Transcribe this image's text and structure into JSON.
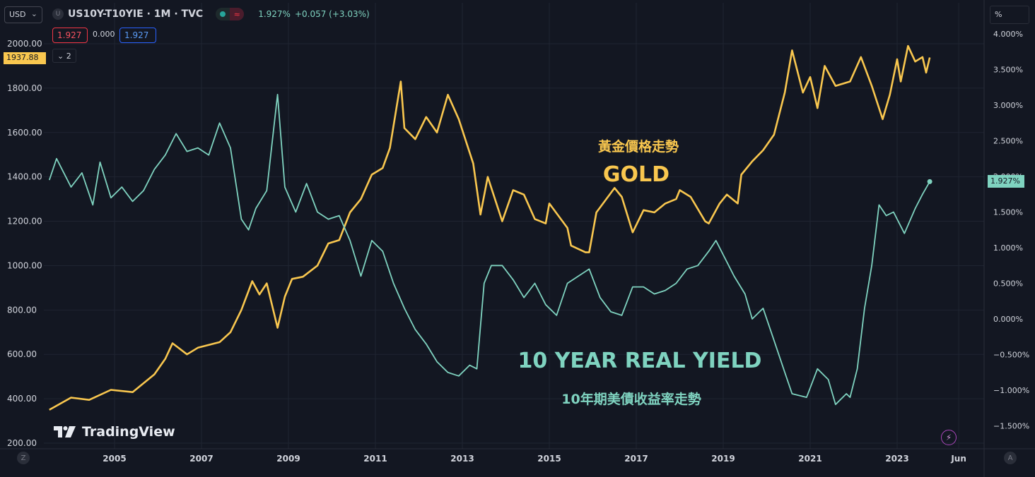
{
  "header": {
    "currency": "USD",
    "symbol_badge": "U",
    "title": "US10Y-T10YIE · 1M · TVC",
    "last_value": "1.927%",
    "change": "+0.057 (+3.03%)",
    "sell_price": "1.927",
    "spread": "0.000",
    "buy_price": "1.927",
    "indicator_count": "2",
    "right_unit": "%"
  },
  "price_tags": {
    "gold_last": "1937.88",
    "yield_last": "1.927%"
  },
  "footer": {
    "logo_text": "TradingView",
    "left_button": "Z",
    "right_button": "A"
  },
  "colors": {
    "background": "#131722",
    "gold": "#f9c74f",
    "real_yield": "#7fd3c0",
    "grid": "#1f2431",
    "axis_text": "#d1d4dc"
  },
  "chart_data": {
    "type": "line",
    "annotations": [
      {
        "text": "黃金價格走勢",
        "series": "gold"
      },
      {
        "text": "GOLD",
        "series": "gold"
      },
      {
        "text": "10 YEAR REAL YIELD",
        "series": "real_yield"
      },
      {
        "text": "10年期美債收益率走勢",
        "series": "real_yield"
      }
    ],
    "x_ticks": [
      "2005",
      "2007",
      "2009",
      "2011",
      "2013",
      "2015",
      "2017",
      "2019",
      "2021",
      "2023",
      "Jun"
    ],
    "x_range": [
      "2003-06",
      "2024-06"
    ],
    "left_axis": {
      "ticks": [
        "200.00",
        "400.00",
        "600.00",
        "800.00",
        "1000.00",
        "1200.00",
        "1400.00",
        "1600.00",
        "1800.00",
        "2000.00"
      ],
      "range": [
        200,
        2000
      ]
    },
    "right_axis": {
      "ticks": [
        "−1.500%",
        "−1.000%",
        "−0.500%",
        "0.000%",
        "0.500%",
        "1.000%",
        "1.500%",
        "2.000%",
        "2.500%",
        "3.000%",
        "3.500%",
        "4.000%"
      ],
      "range": [
        -1.5,
        4.0
      ]
    },
    "grid": true,
    "series": [
      {
        "key": "gold",
        "axis": "left",
        "points": [
          [
            "2003-07",
            350
          ],
          [
            "2004-01",
            405
          ],
          [
            "2004-06",
            395
          ],
          [
            "2004-12",
            440
          ],
          [
            "2005-06",
            430
          ],
          [
            "2005-12",
            510
          ],
          [
            "2006-03",
            580
          ],
          [
            "2006-05",
            650
          ],
          [
            "2006-09",
            600
          ],
          [
            "2006-12",
            630
          ],
          [
            "2007-06",
            655
          ],
          [
            "2007-09",
            700
          ],
          [
            "2007-12",
            800
          ],
          [
            "2008-03",
            930
          ],
          [
            "2008-05",
            870
          ],
          [
            "2008-07",
            920
          ],
          [
            "2008-10",
            720
          ],
          [
            "2008-12",
            860
          ],
          [
            "2009-02",
            940
          ],
          [
            "2009-05",
            950
          ],
          [
            "2009-09",
            1000
          ],
          [
            "2009-12",
            1100
          ],
          [
            "2010-03",
            1115
          ],
          [
            "2010-06",
            1240
          ],
          [
            "2010-09",
            1300
          ],
          [
            "2010-12",
            1410
          ],
          [
            "2011-03",
            1440
          ],
          [
            "2011-05",
            1530
          ],
          [
            "2011-08",
            1830
          ],
          [
            "2011-09",
            1620
          ],
          [
            "2011-12",
            1570
          ],
          [
            "2012-03",
            1670
          ],
          [
            "2012-06",
            1600
          ],
          [
            "2012-09",
            1770
          ],
          [
            "2012-12",
            1660
          ],
          [
            "2013-04",
            1460
          ],
          [
            "2013-06",
            1230
          ],
          [
            "2013-08",
            1400
          ],
          [
            "2013-12",
            1200
          ],
          [
            "2014-03",
            1340
          ],
          [
            "2014-06",
            1320
          ],
          [
            "2014-09",
            1210
          ],
          [
            "2014-12",
            1190
          ],
          [
            "2015-01",
            1280
          ],
          [
            "2015-06",
            1170
          ],
          [
            "2015-07",
            1090
          ],
          [
            "2015-11",
            1060
          ],
          [
            "2015-12",
            1060
          ],
          [
            "2016-02",
            1240
          ],
          [
            "2016-07",
            1350
          ],
          [
            "2016-09",
            1310
          ],
          [
            "2016-12",
            1150
          ],
          [
            "2017-03",
            1250
          ],
          [
            "2017-06",
            1240
          ],
          [
            "2017-09",
            1280
          ],
          [
            "2017-12",
            1300
          ],
          [
            "2018-01",
            1340
          ],
          [
            "2018-04",
            1310
          ],
          [
            "2018-08",
            1200
          ],
          [
            "2018-09",
            1190
          ],
          [
            "2018-12",
            1280
          ],
          [
            "2019-02",
            1320
          ],
          [
            "2019-05",
            1280
          ],
          [
            "2019-06",
            1410
          ],
          [
            "2019-09",
            1470
          ],
          [
            "2019-12",
            1520
          ],
          [
            "2020-03",
            1590
          ],
          [
            "2020-06",
            1780
          ],
          [
            "2020-08",
            1970
          ],
          [
            "2020-11",
            1780
          ],
          [
            "2021-01",
            1850
          ],
          [
            "2021-03",
            1710
          ],
          [
            "2021-05",
            1900
          ],
          [
            "2021-08",
            1810
          ],
          [
            "2021-12",
            1830
          ],
          [
            "2022-03",
            1940
          ],
          [
            "2022-06",
            1810
          ],
          [
            "2022-09",
            1660
          ],
          [
            "2022-11",
            1770
          ],
          [
            "2023-01",
            1930
          ],
          [
            "2023-02",
            1830
          ],
          [
            "2023-04",
            1990
          ],
          [
            "2023-06",
            1920
          ],
          [
            "2023-08",
            1940
          ],
          [
            "2023-09",
            1870
          ],
          [
            "2023-10",
            1937.88
          ]
        ]
      },
      {
        "key": "real_yield",
        "axis": "right",
        "points": [
          [
            "2003-07",
            1.95
          ],
          [
            "2003-09",
            2.25
          ],
          [
            "2004-01",
            1.85
          ],
          [
            "2004-04",
            2.05
          ],
          [
            "2004-07",
            1.6
          ],
          [
            "2004-09",
            2.2
          ],
          [
            "2004-12",
            1.7
          ],
          [
            "2005-03",
            1.85
          ],
          [
            "2005-06",
            1.65
          ],
          [
            "2005-09",
            1.8
          ],
          [
            "2005-12",
            2.1
          ],
          [
            "2006-03",
            2.3
          ],
          [
            "2006-06",
            2.6
          ],
          [
            "2006-09",
            2.35
          ],
          [
            "2006-12",
            2.4
          ],
          [
            "2007-03",
            2.3
          ],
          [
            "2007-06",
            2.75
          ],
          [
            "2007-09",
            2.4
          ],
          [
            "2007-12",
            1.4
          ],
          [
            "2008-02",
            1.25
          ],
          [
            "2008-04",
            1.55
          ],
          [
            "2008-07",
            1.8
          ],
          [
            "2008-10",
            3.15
          ],
          [
            "2008-12",
            1.85
          ],
          [
            "2009-03",
            1.5
          ],
          [
            "2009-06",
            1.9
          ],
          [
            "2009-09",
            1.5
          ],
          [
            "2009-12",
            1.4
          ],
          [
            "2010-03",
            1.45
          ],
          [
            "2010-06",
            1.1
          ],
          [
            "2010-09",
            0.6
          ],
          [
            "2010-12",
            1.1
          ],
          [
            "2011-03",
            0.95
          ],
          [
            "2011-06",
            0.5
          ],
          [
            "2011-09",
            0.15
          ],
          [
            "2011-12",
            -0.15
          ],
          [
            "2012-03",
            -0.35
          ],
          [
            "2012-06",
            -0.6
          ],
          [
            "2012-09",
            -0.75
          ],
          [
            "2012-12",
            -0.8
          ],
          [
            "2013-03",
            -0.65
          ],
          [
            "2013-05",
            -0.7
          ],
          [
            "2013-07",
            0.5
          ],
          [
            "2013-09",
            0.75
          ],
          [
            "2013-12",
            0.75
          ],
          [
            "2014-03",
            0.55
          ],
          [
            "2014-06",
            0.3
          ],
          [
            "2014-09",
            0.5
          ],
          [
            "2014-12",
            0.2
          ],
          [
            "2015-03",
            0.05
          ],
          [
            "2015-06",
            0.5
          ],
          [
            "2015-09",
            0.6
          ],
          [
            "2015-12",
            0.7
          ],
          [
            "2016-03",
            0.3
          ],
          [
            "2016-06",
            0.1
          ],
          [
            "2016-09",
            0.05
          ],
          [
            "2016-12",
            0.45
          ],
          [
            "2017-03",
            0.45
          ],
          [
            "2017-06",
            0.35
          ],
          [
            "2017-09",
            0.4
          ],
          [
            "2017-12",
            0.5
          ],
          [
            "2018-03",
            0.7
          ],
          [
            "2018-06",
            0.75
          ],
          [
            "2018-09",
            0.95
          ],
          [
            "2018-11",
            1.1
          ],
          [
            "2019-01",
            0.9
          ],
          [
            "2019-04",
            0.6
          ],
          [
            "2019-07",
            0.35
          ],
          [
            "2019-09",
            0.0
          ],
          [
            "2019-12",
            0.15
          ],
          [
            "2020-03",
            -0.3
          ],
          [
            "2020-06",
            -0.75
          ],
          [
            "2020-08",
            -1.05
          ],
          [
            "2020-12",
            -1.1
          ],
          [
            "2021-03",
            -0.7
          ],
          [
            "2021-06",
            -0.85
          ],
          [
            "2021-08",
            -1.2
          ],
          [
            "2021-11",
            -1.05
          ],
          [
            "2021-12",
            -1.1
          ],
          [
            "2022-02",
            -0.7
          ],
          [
            "2022-04",
            0.15
          ],
          [
            "2022-06",
            0.75
          ],
          [
            "2022-08",
            1.6
          ],
          [
            "2022-10",
            1.45
          ],
          [
            "2022-12",
            1.5
          ],
          [
            "2023-03",
            1.2
          ],
          [
            "2023-06",
            1.55
          ],
          [
            "2023-08",
            1.75
          ],
          [
            "2023-10",
            1.927
          ]
        ]
      }
    ]
  }
}
